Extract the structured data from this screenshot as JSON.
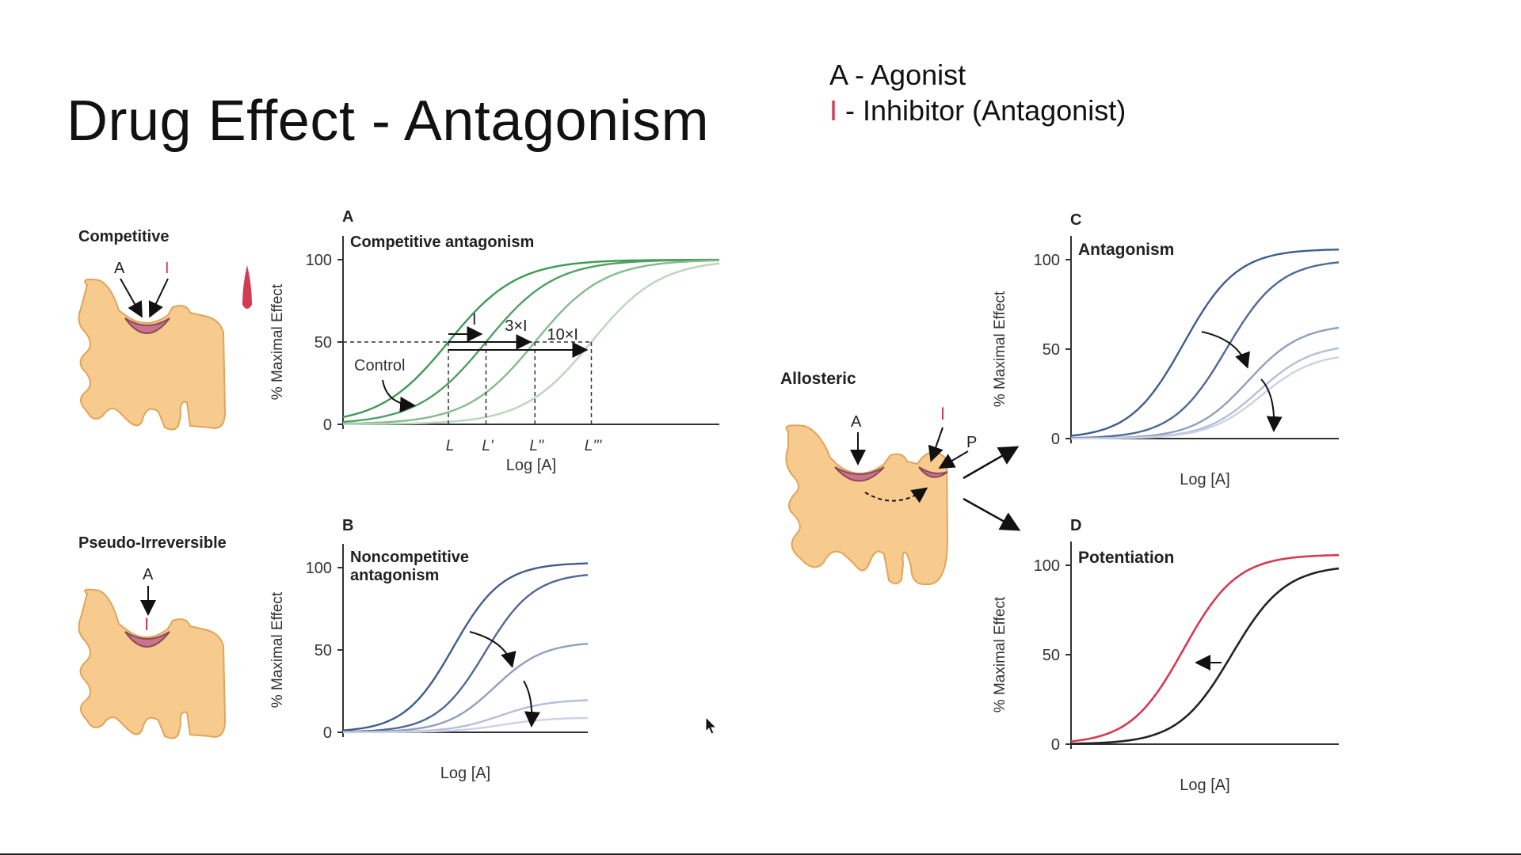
{
  "slide": {
    "title": "Drug Effect - Antagonism",
    "legend": {
      "agonist_symbol": "A",
      "agonist_text": " - Agonist",
      "inhibitor_symbol": "I",
      "inhibitor_text": " - Inhibitor (Antagonist)"
    }
  },
  "receptors": {
    "competitive": {
      "label": "Competitive",
      "agonist": "A",
      "inhibitor": "I"
    },
    "pseudo": {
      "label": "Pseudo-Irreversible",
      "agonist": "A",
      "inhibitor": "I"
    },
    "allosteric": {
      "label": "Allosteric",
      "agonist": "A",
      "inhibitor": "I",
      "potentiator": "P"
    }
  },
  "colors": {
    "green": "#3d9a55",
    "blue": "#3f5d8c",
    "red": "#d23b52",
    "black": "#222222",
    "receptor": "#f7cb8e",
    "receptor_edge": "#e0a45a",
    "site": "#c9748c"
  },
  "chart_data": [
    {
      "id": "A",
      "type": "line",
      "panel_letter": "A",
      "title": "Competitive antagonism",
      "xlabel": "Log [A]",
      "ylabel": "% Maximal Effect",
      "yticks": [
        0,
        50,
        100
      ],
      "ylim": [
        0,
        100
      ],
      "x_ticks": [
        "L",
        "L'",
        "L''",
        "L'''"
      ],
      "series": [
        {
          "values_ec50_rel": 0.0
        },
        {
          "values_ec50_rel": 0.55
        },
        {
          "values_ec50_rel": 1.3
        },
        {
          "values_ec50_rel": 2.1
        }
      ],
      "annotations": {
        "control": "Control",
        "i1": "I",
        "i3": "3×I",
        "i10": "10×I"
      }
    },
    {
      "id": "B",
      "type": "line",
      "panel_letter": "B",
      "title_line1": "Noncompetitive",
      "title_line2": "antagonism",
      "xlabel": "Log [A]",
      "ylabel": "% Maximal Effect",
      "yticks": [
        0,
        50,
        100
      ],
      "ylim": [
        0,
        100
      ],
      "series": [
        {
          "max": 103
        },
        {
          "max": 97
        },
        {
          "max": 55
        },
        {
          "max": 20
        },
        {
          "max": 9
        }
      ]
    },
    {
      "id": "C",
      "type": "line",
      "panel_letter": "C",
      "title": "Antagonism",
      "xlabel": "Log [A]",
      "ylabel": "% Maximal Effect",
      "yticks": [
        0,
        50,
        100
      ],
      "ylim": [
        0,
        100
      ],
      "series": [
        {
          "max": 106
        },
        {
          "max": 100
        },
        {
          "max": 64
        },
        {
          "max": 53
        },
        {
          "max": 48
        }
      ]
    },
    {
      "id": "D",
      "type": "line",
      "panel_letter": "D",
      "title": "Potentiation",
      "xlabel": "Log [A]",
      "ylabel": "% Maximal Effect",
      "yticks": [
        0,
        50,
        100
      ],
      "ylim": [
        0,
        100
      ],
      "series": [
        {
          "color": "red",
          "max": 106
        },
        {
          "color": "black",
          "max": 100
        }
      ]
    }
  ]
}
